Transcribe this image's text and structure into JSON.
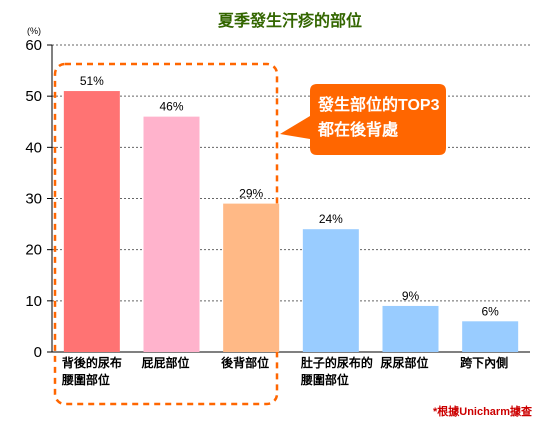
{
  "chart_data": {
    "type": "bar",
    "title": "夏季發生汗疹的部位",
    "unit": "(%)",
    "ylim": [
      0,
      60
    ],
    "yticks": [
      "0",
      "10",
      "20",
      "30",
      "40",
      "50",
      "60"
    ],
    "grid": true,
    "categories": [
      [
        "背後的尿布",
        "腰圍部位"
      ],
      [
        "屁屁部位"
      ],
      [
        "後背部位"
      ],
      [
        "肚子的尿布的",
        "腰圍部位"
      ],
      [
        "尿尿部位"
      ],
      [
        "跨下內側"
      ]
    ],
    "values": [
      51,
      46,
      29,
      24,
      9,
      6
    ],
    "value_labels": [
      "51%",
      "46%",
      "29%",
      "24%",
      "9%",
      "6%"
    ],
    "bar_colors": [
      "#ff7373",
      "#ffb3cc",
      "#ffb986",
      "#99ccff",
      "#99ccff",
      "#99ccff"
    ],
    "callout": [
      "發生部位的TOP3",
      "都在後背處"
    ],
    "note": "*根據Unicharm據查"
  },
  "colors": {
    "title": "#336600",
    "callout_fill": "#ff6600",
    "highlight_border": "#ff6600",
    "grid": "#666666",
    "axis": "#000000",
    "note": "#cc0000"
  }
}
